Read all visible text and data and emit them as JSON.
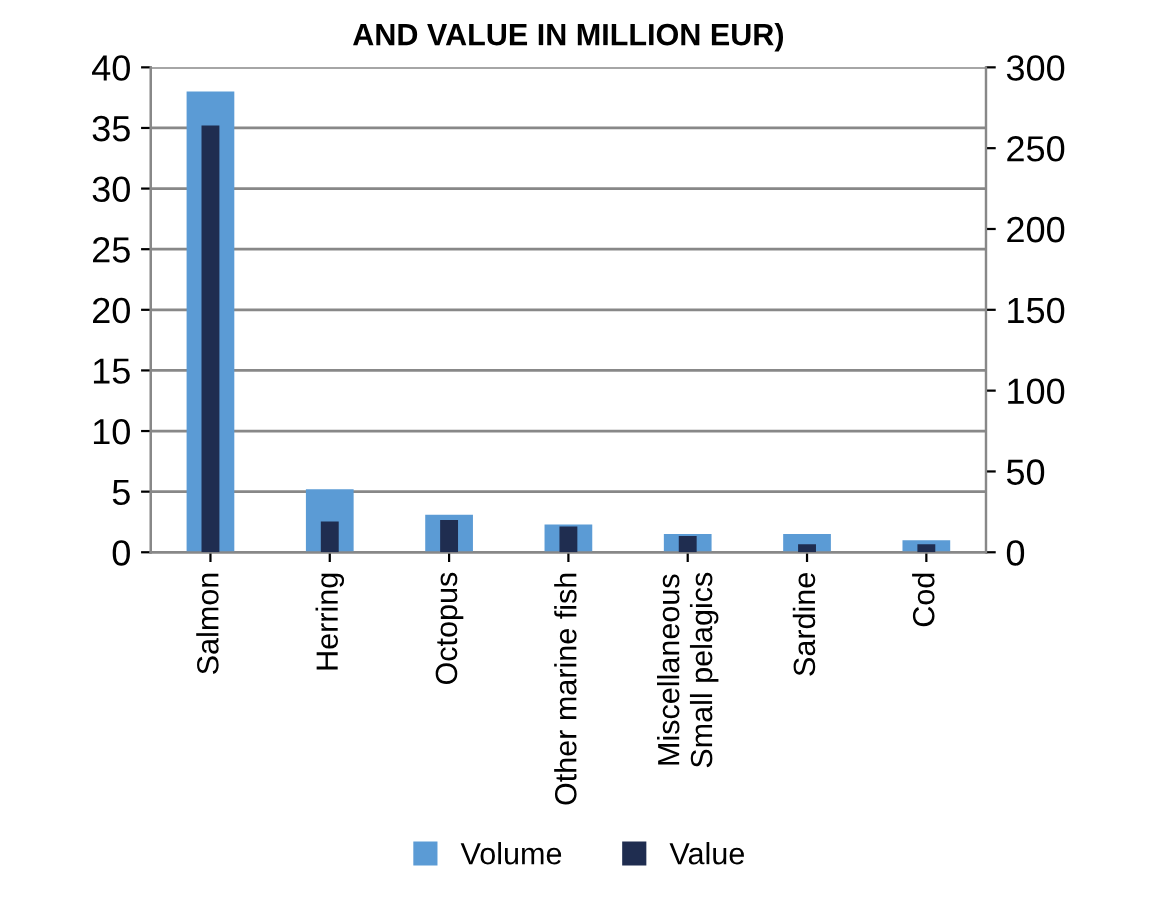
{
  "chart_data": {
    "type": "bar",
    "title": "AND VALUE IN MILLION EUR)",
    "categories": [
      "Salmon",
      "Herring",
      "Octopus",
      "Other marine fish",
      "Miscellaneous\nSmall pelagics",
      "Sardine",
      "Cod"
    ],
    "series": [
      {
        "name": "Volume",
        "color": "#5b9bd5",
        "values": [
          38.0,
          5.2,
          3.1,
          2.3,
          1.5,
          1.5,
          1.0
        ]
      },
      {
        "name": "Value",
        "color": "#1f2d50",
        "axis": "y2",
        "values": [
          264,
          19,
          20,
          16,
          10,
          5,
          5
        ]
      }
    ],
    "ylim": [
      0,
      40
    ],
    "yticks": [
      0,
      5,
      10,
      15,
      20,
      25,
      30,
      35,
      40
    ],
    "y2lim": [
      0,
      300
    ],
    "y2ticks": [
      0,
      50,
      100,
      150,
      200,
      250,
      300
    ],
    "grid": "y",
    "legend": "bottom"
  }
}
